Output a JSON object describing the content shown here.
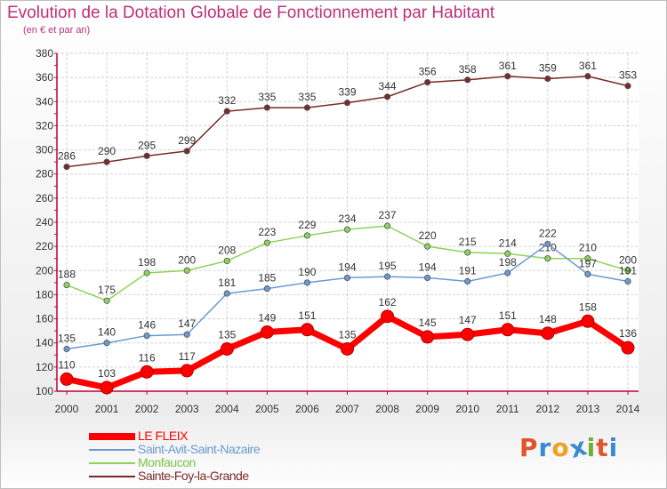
{
  "title": "Evolution de la Dotation Globale de Fonctionnement par Habitant",
  "subtitle": "(en € et par an)",
  "brand": {
    "text": "Proxiti",
    "letters": [
      "P",
      "r",
      "o",
      "x",
      "i",
      "t",
      "i"
    ],
    "letter_colors": [
      "#e0552a",
      "#3a8ad0",
      "#f0a020",
      "#3a8ad0",
      "#70b030",
      "#e0552a",
      "#3a8ad0"
    ]
  },
  "colors": {
    "title": "#c0307a",
    "axis": "#bf0030",
    "grid": "#d2d2d2",
    "label": "#333333"
  },
  "chart_data": {
    "type": "line",
    "title": "Evolution de la Dotation Globale de Fonctionnement par Habitant",
    "subtitle": "(en € et par an)",
    "x": [
      "2000",
      "2001",
      "2002",
      "2003",
      "2004",
      "2005",
      "2006",
      "2007",
      "2008",
      "2009",
      "2010",
      "2011",
      "2012",
      "2013",
      "2014"
    ],
    "ylim": [
      100,
      380
    ],
    "yticks": [
      100,
      120,
      140,
      160,
      180,
      200,
      220,
      240,
      260,
      280,
      300,
      320,
      340,
      360,
      380
    ],
    "grid": true,
    "legend_position": "bottom-left",
    "series": [
      {
        "name": "LE FLEIX",
        "color": "#ff0000",
        "values": [
          110,
          103,
          116,
          117,
          135,
          149,
          151,
          135,
          162,
          145,
          147,
          151,
          148,
          158,
          136
        ]
      },
      {
        "name": "Saint-Avit-Saint-Nazaire",
        "color": "#6a9ad0",
        "values": [
          135,
          140,
          146,
          147,
          181,
          185,
          190,
          194,
          195,
          194,
          191,
          198,
          222,
          197,
          191
        ]
      },
      {
        "name": "Monfaucon",
        "color": "#8cd45a",
        "values": [
          188,
          175,
          198,
          200,
          208,
          223,
          229,
          234,
          237,
          220,
          215,
          214,
          210,
          210,
          200
        ]
      },
      {
        "name": "Sainte-Foy-la-Grande",
        "color": "#7a2a2a",
        "values": [
          286,
          290,
          295,
          299,
          332,
          335,
          335,
          339,
          344,
          356,
          358,
          361,
          359,
          361,
          353
        ]
      }
    ]
  }
}
